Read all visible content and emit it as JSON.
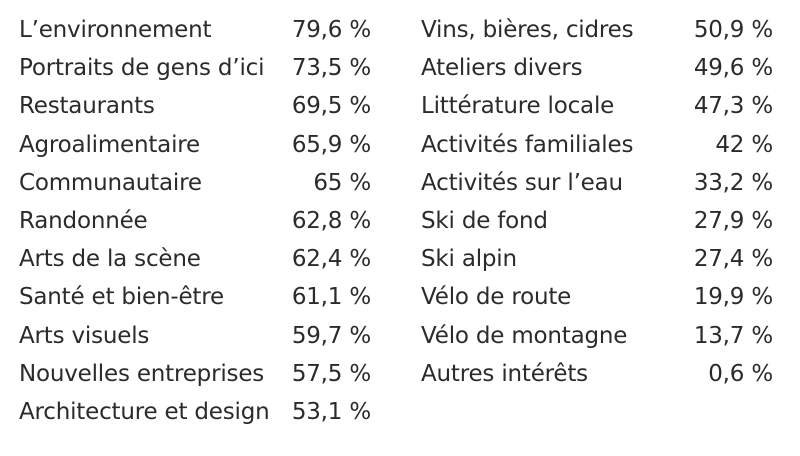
{
  "chart_data": {
    "type": "table",
    "columns": [
      {
        "rows": [
          {
            "label": "L’environnement",
            "value": "79,6 %"
          },
          {
            "label": "Portraits de gens d’ici",
            "value": "73,5 %"
          },
          {
            "label": "Restaurants",
            "value": "69,5 %"
          },
          {
            "label": "Agroalimentaire",
            "value": "65,9 %"
          },
          {
            "label": "Communautaire",
            "value": "65 %"
          },
          {
            "label": "Randonnée",
            "value": "62,8 %"
          },
          {
            "label": "Arts de la scène",
            "value": "62,4 %"
          },
          {
            "label": "Santé et bien-être",
            "value": "61,1 %"
          },
          {
            "label": "Arts visuels",
            "value": "59,7 %"
          },
          {
            "label": "Nouvelles entreprises",
            "value": "57,5 %"
          },
          {
            "label": "Architecture et design",
            "value": "53,1 %"
          }
        ]
      },
      {
        "rows": [
          {
            "label": "Vins, bières, cidres",
            "value": "50,9 %"
          },
          {
            "label": "Ateliers divers",
            "value": "49,6 %"
          },
          {
            "label": "Littérature locale",
            "value": "47,3 %"
          },
          {
            "label": "Activités familiales",
            "value": "42 %"
          },
          {
            "label": "Activités sur l’eau",
            "value": "33,2 %"
          },
          {
            "label": "Ski de fond",
            "value": "27,9 %"
          },
          {
            "label": "Ski alpin",
            "value": "27,4 %"
          },
          {
            "label": "Vélo de route",
            "value": "19,9 %"
          },
          {
            "label": "Vélo de montagne",
            "value": "13,7 %"
          },
          {
            "label": "Autres intérêts",
            "value": "0,6 %"
          }
        ]
      }
    ]
  }
}
